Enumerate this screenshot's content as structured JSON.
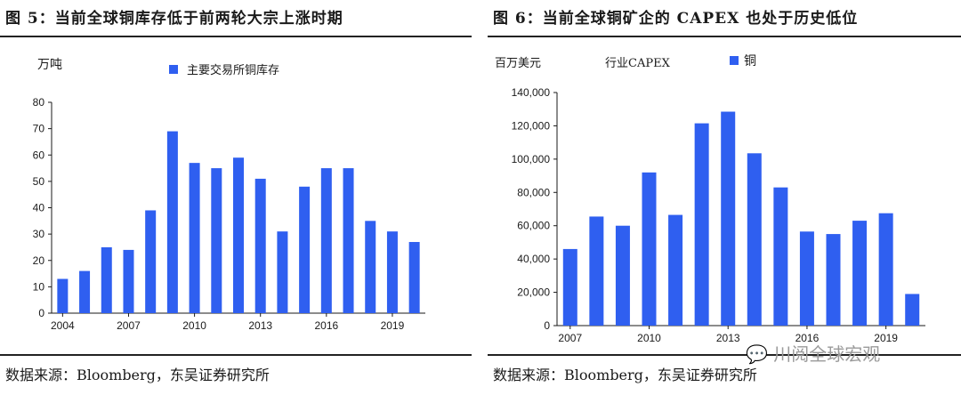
{
  "left": {
    "title": "图 5：当前全球铜库存低于前两轮大宗上涨时期",
    "unit": "万吨",
    "source": "数据来源：Bloomberg，东吴证券研究所",
    "legend": "主要交易所铜库存"
  },
  "right": {
    "title": "图 6：当前全球铜矿企的 CAPEX 也处于历史低位",
    "unit": "百万美元",
    "series_label": "行业CAPEX",
    "source": "数据来源：Bloomberg，东吴证券研究所",
    "legend": "铜"
  },
  "watermark": "川阅全球宏观",
  "colors": {
    "bar": "#2f5ff0",
    "axis": "#1a1a1a"
  },
  "chart_data": [
    {
      "type": "bar",
      "title": "",
      "xlabel": "",
      "ylabel": "万吨",
      "categories": [
        "2004",
        "2005",
        "2006",
        "2007",
        "2008",
        "2009",
        "2010",
        "2011",
        "2012",
        "2013",
        "2014",
        "2015",
        "2016",
        "2017",
        "2018",
        "2019",
        "2020"
      ],
      "x_tick_labels": [
        "2004",
        "2007",
        "2010",
        "2013",
        "2016",
        "2019"
      ],
      "y_ticks": [
        "0",
        "10",
        "20",
        "30",
        "40",
        "50",
        "60",
        "70",
        "80"
      ],
      "series": [
        {
          "name": "主要交易所铜库存",
          "values": [
            13,
            16,
            25,
            24,
            39,
            69,
            57,
            55,
            59,
            51,
            31,
            48,
            55,
            55,
            35,
            31,
            27
          ]
        }
      ],
      "ylim": [
        0,
        80
      ],
      "grid": false,
      "legend_position": "top-center"
    },
    {
      "type": "bar",
      "title": "",
      "xlabel": "",
      "ylabel": "百万美元",
      "categories": [
        "2007",
        "2008",
        "2009",
        "2010",
        "2011",
        "2012",
        "2013",
        "2014",
        "2015",
        "2016",
        "2017",
        "2018",
        "2019",
        "2020"
      ],
      "x_tick_labels": [
        "2007",
        "2010",
        "2013",
        "2016",
        "2019"
      ],
      "y_ticks": [
        "0",
        "20,000",
        "40,000",
        "60,000",
        "80,000",
        "100,000",
        "120,000",
        "140,000"
      ],
      "series": [
        {
          "name": "铜",
          "values": [
            46000,
            65500,
            60000,
            92000,
            66500,
            121500,
            128500,
            103500,
            83000,
            56500,
            55000,
            63000,
            67500,
            19000
          ]
        }
      ],
      "ylim": [
        0,
        140000
      ],
      "grid": false,
      "legend_position": "top-center"
    }
  ]
}
